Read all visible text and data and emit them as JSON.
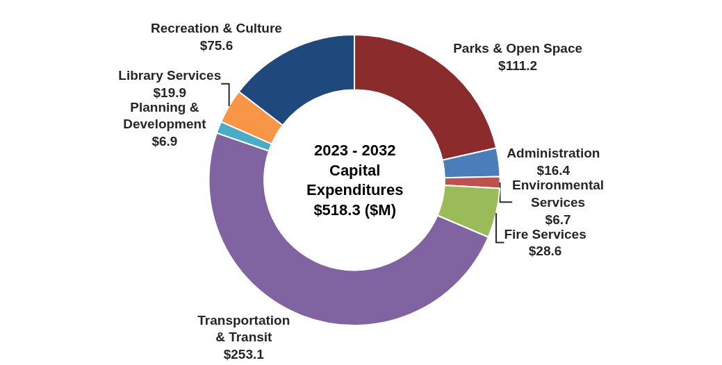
{
  "chart_data": {
    "type": "donut",
    "categories": [
      "Parks & Open Space",
      "Administration",
      "Environmental Services",
      "Fire Services",
      "Transportation & Transit",
      "Planning & Development",
      "Library Services",
      "Recreation & Culture"
    ],
    "values": [
      111.2,
      16.4,
      6.7,
      28.6,
      253.1,
      6.9,
      19.9,
      75.6
    ],
    "value_labels": [
      "$111.2",
      "$16.4",
      "$6.7",
      "$28.6",
      "$253.1",
      "$6.9",
      "$19.9",
      "$75.6"
    ],
    "colors": [
      "#8b2b2b",
      "#4a7ebb",
      "#c0504d",
      "#9bbb59",
      "#8064a2",
      "#4bacc6",
      "#f79646",
      "#1f497d"
    ],
    "annotations": [
      "2023 - 2032\nCapital\nExpenditures\n$518.3 ($M)"
    ],
    "legend": false
  }
}
